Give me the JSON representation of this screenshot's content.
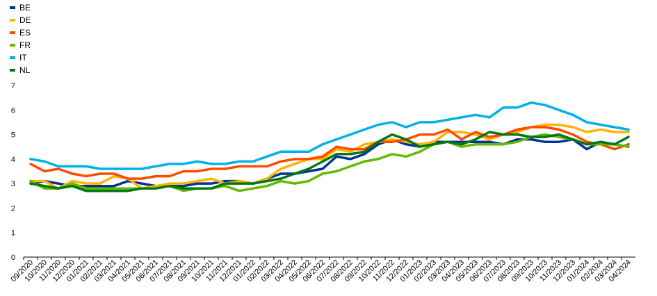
{
  "chart_data": {
    "type": "line",
    "title": "",
    "xlabel": "",
    "ylabel": "",
    "ylim": [
      0,
      7
    ],
    "yticks": [
      0,
      1,
      2,
      3,
      4,
      5,
      6,
      7
    ],
    "grid": false,
    "legend_position": "top-left",
    "x": [
      "09/2020",
      "10/2020",
      "11/2020",
      "12/2020",
      "01/2021",
      "02/2021",
      "03/2021",
      "04/2021",
      "05/2021",
      "06/2021",
      "07/2021",
      "08/2021",
      "09/2021",
      "10/2021",
      "11/2021",
      "12/2021",
      "01/2022",
      "02/2022",
      "03/2022",
      "04/2022",
      "05/2022",
      "06/2022",
      "07/2022",
      "08/2022",
      "09/2022",
      "10/2022",
      "11/2022",
      "12/2022",
      "01/2023",
      "02/2023",
      "03/2023",
      "04/2023",
      "05/2023",
      "06/2023",
      "07/2023",
      "08/2023",
      "09/2023",
      "10/2023",
      "11/2023",
      "12/2023",
      "01/2024",
      "02/2024",
      "03/2024",
      "04/2024"
    ],
    "series": [
      {
        "name": "BE",
        "color": "#003299",
        "values": [
          3.0,
          3.1,
          3.0,
          2.9,
          2.9,
          2.9,
          2.9,
          3.1,
          3.0,
          2.9,
          2.9,
          2.9,
          3.0,
          3.0,
          3.1,
          3.1,
          3.0,
          3.2,
          3.4,
          3.4,
          3.5,
          3.6,
          4.1,
          4.0,
          4.2,
          4.6,
          4.8,
          4.6,
          4.5,
          4.7,
          4.7,
          4.7,
          4.7,
          4.7,
          4.6,
          4.8,
          4.8,
          4.7,
          4.7,
          4.8,
          4.4,
          4.7,
          4.6,
          4.5
        ]
      },
      {
        "name": "DE",
        "color": "#FFB400",
        "values": [
          3.1,
          3.1,
          2.8,
          3.1,
          3.0,
          3.0,
          3.3,
          3.2,
          2.8,
          2.9,
          3.0,
          3.0,
          3.1,
          3.2,
          3.0,
          3.1,
          3.0,
          3.2,
          3.6,
          3.8,
          4.0,
          4.0,
          4.4,
          4.3,
          4.6,
          4.7,
          4.8,
          4.7,
          4.6,
          4.7,
          5.1,
          5.1,
          5.0,
          4.8,
          5.0,
          5.1,
          5.3,
          5.4,
          5.4,
          5.3,
          5.1,
          5.2,
          5.1,
          5.1
        ]
      },
      {
        "name": "ES",
        "color": "#FF4B00",
        "values": [
          3.8,
          3.5,
          3.6,
          3.4,
          3.3,
          3.4,
          3.4,
          3.2,
          3.2,
          3.3,
          3.3,
          3.5,
          3.5,
          3.6,
          3.6,
          3.7,
          3.7,
          3.7,
          3.9,
          4.0,
          4.0,
          4.1,
          4.5,
          4.4,
          4.4,
          4.7,
          4.7,
          4.8,
          5.0,
          5.0,
          5.2,
          4.8,
          5.1,
          4.9,
          5.0,
          5.2,
          5.3,
          5.3,
          5.2,
          5.0,
          4.7,
          4.6,
          4.4,
          4.6
        ]
      },
      {
        "name": "FR",
        "color": "#65B800",
        "values": [
          3.1,
          2.8,
          2.8,
          3.0,
          2.8,
          2.8,
          2.8,
          2.8,
          2.8,
          2.8,
          2.9,
          2.7,
          2.8,
          2.8,
          2.9,
          2.7,
          2.8,
          2.9,
          3.1,
          3.0,
          3.1,
          3.4,
          3.5,
          3.7,
          3.9,
          4.0,
          4.2,
          4.1,
          4.3,
          4.6,
          4.7,
          4.5,
          4.6,
          4.6,
          4.6,
          4.7,
          4.9,
          5.0,
          4.9,
          4.8,
          4.6,
          4.6,
          4.6,
          4.5
        ]
      },
      {
        "name": "IT",
        "color": "#00B1EA",
        "values": [
          4.0,
          3.9,
          3.7,
          3.7,
          3.7,
          3.6,
          3.6,
          3.6,
          3.6,
          3.7,
          3.8,
          3.8,
          3.9,
          3.8,
          3.8,
          3.9,
          3.9,
          4.1,
          4.3,
          4.3,
          4.3,
          4.6,
          4.8,
          5.0,
          5.2,
          5.4,
          5.5,
          5.3,
          5.5,
          5.5,
          5.6,
          5.7,
          5.8,
          5.7,
          6.1,
          6.1,
          6.3,
          6.2,
          6.0,
          5.8,
          5.5,
          5.4,
          5.3,
          5.2
        ]
      },
      {
        "name": "NL",
        "color": "#007816",
        "values": [
          3.0,
          2.9,
          2.8,
          2.9,
          2.7,
          2.7,
          2.7,
          2.7,
          2.8,
          2.8,
          2.9,
          2.8,
          2.8,
          2.8,
          3.0,
          3.0,
          3.0,
          3.1,
          3.2,
          3.4,
          3.6,
          3.9,
          4.2,
          4.2,
          4.3,
          4.7,
          5.0,
          4.8,
          4.5,
          4.6,
          4.7,
          4.6,
          4.8,
          5.1,
          5.0,
          5.0,
          4.9,
          4.9,
          5.0,
          4.8,
          4.6,
          4.7,
          4.6,
          4.9
        ]
      }
    ]
  }
}
